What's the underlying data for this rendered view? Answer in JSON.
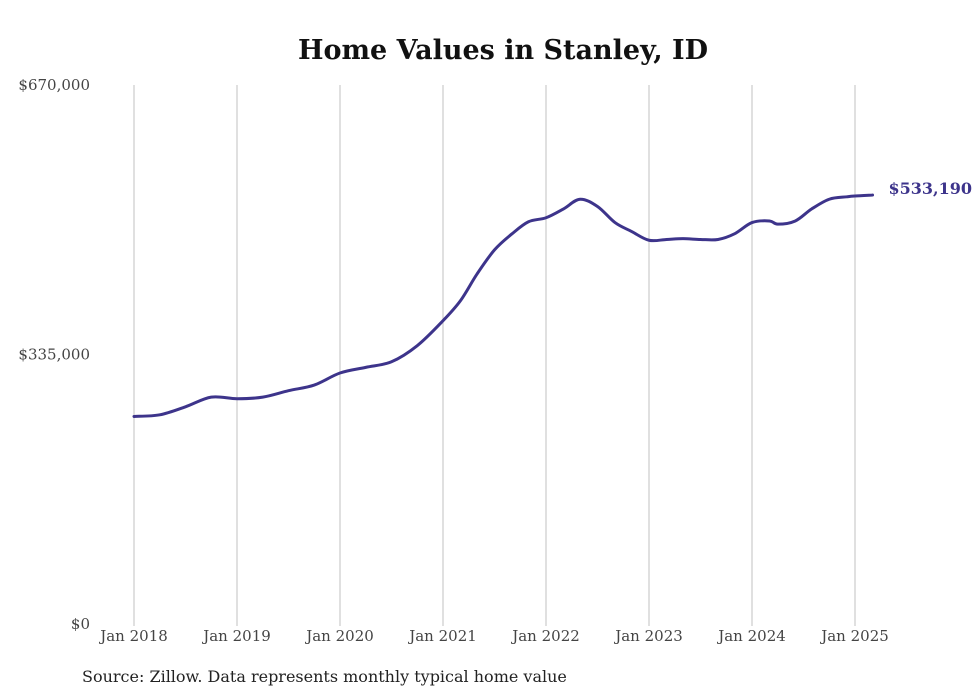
{
  "chart_data": {
    "type": "line",
    "title": "Home Values in Stanley, ID",
    "xlabel": "",
    "ylabel": "",
    "ylim": [
      0,
      670000
    ],
    "yticks": [
      {
        "value": 0,
        "label": "$0"
      },
      {
        "value": 335000,
        "label": "$335,000"
      },
      {
        "value": 670000,
        "label": "$670,000"
      }
    ],
    "xticks": [
      {
        "value": 2018,
        "label": "Jan 2018"
      },
      {
        "value": 2019,
        "label": "Jan 2019"
      },
      {
        "value": 2020,
        "label": "Jan 2020"
      },
      {
        "value": 2021,
        "label": "Jan 2021"
      },
      {
        "value": 2022,
        "label": "Jan 2022"
      },
      {
        "value": 2023,
        "label": "Jan 2023"
      },
      {
        "value": 2024,
        "label": "Jan 2024"
      },
      {
        "value": 2025,
        "label": "Jan 2025"
      }
    ],
    "x_range": [
      2018,
      2025.17
    ],
    "grid": {
      "vertical": true,
      "horizontal": false
    },
    "legend": "none",
    "end_label": "$533,190",
    "series": [
      {
        "color": "#3d348b",
        "x": [
          2018.0,
          2018.25,
          2018.5,
          2018.75,
          2019.0,
          2019.25,
          2019.5,
          2019.75,
          2020.0,
          2020.25,
          2020.5,
          2020.75,
          2021.0,
          2021.17,
          2021.33,
          2021.5,
          2021.67,
          2021.83,
          2022.0,
          2022.17,
          2022.33,
          2022.5,
          2022.67,
          2022.83,
          2023.0,
          2023.17,
          2023.33,
          2023.5,
          2023.67,
          2023.83,
          2024.0,
          2024.17,
          2024.25,
          2024.42,
          2024.58,
          2024.75,
          2024.92,
          2025.0,
          2025.17
        ],
        "y": [
          258000,
          260000,
          270000,
          282000,
          280000,
          282000,
          290000,
          297000,
          312000,
          319000,
          326000,
          346000,
          377000,
          402000,
          435000,
          465000,
          485000,
          500000,
          505000,
          516000,
          528000,
          519000,
          499000,
          488000,
          477000,
          478000,
          479000,
          478000,
          478000,
          485000,
          499000,
          501000,
          497000,
          501000,
          516000,
          528000,
          531000,
          532000,
          533190
        ]
      }
    ]
  },
  "source": "Source: Zillow. Data represents monthly typical home value"
}
